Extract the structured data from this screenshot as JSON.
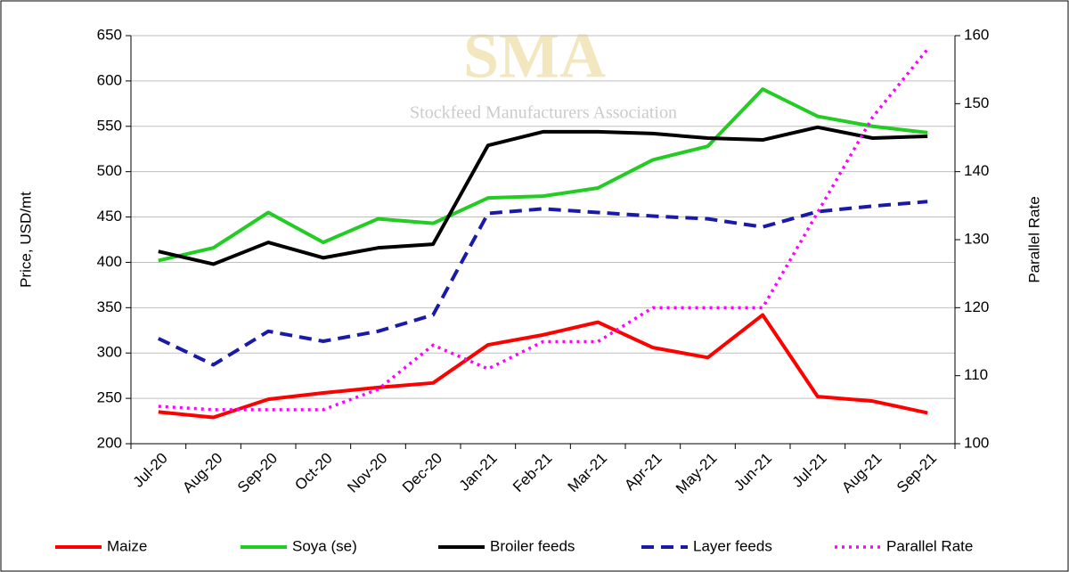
{
  "chart_data": {
    "type": "line",
    "annotations": [
      "SMA",
      "Stockfeed Manufacturers Association"
    ],
    "ylabel": "Price, USD/mt",
    "y2label": "Parallel Rate",
    "categories": [
      "Jul-20",
      "Aug-20",
      "Sep-20",
      "Oct-20",
      "Nov-20",
      "Dec-20",
      "Jan-21",
      "Feb-21",
      "Mar-21",
      "Apr-21",
      "May-21",
      "Jun-21",
      "Jul-21",
      "Aug-21",
      "Sep-21"
    ],
    "series": [
      {
        "name": "Maize",
        "color": "#ff0000",
        "dash": "solid",
        "values": [
          235,
          229,
          249,
          256,
          262,
          267,
          309,
          320,
          334,
          306,
          295,
          342,
          252,
          247,
          234
        ]
      },
      {
        "name": "Soya (se)",
        "color": "#22cc22",
        "dash": "solid",
        "values": [
          402,
          416,
          455,
          422,
          448,
          443,
          471,
          473,
          482,
          513,
          528,
          591,
          561,
          550,
          543
        ]
      },
      {
        "name": "Broiler feeds",
        "color": "#000000",
        "dash": "solid",
        "values": [
          412,
          398,
          422,
          405,
          416,
          420,
          529,
          544,
          544,
          542,
          537,
          535,
          549,
          537,
          539
        ]
      },
      {
        "name": "Layer feeds",
        "color": "#1a1aa8",
        "dash": "dashed",
        "values": [
          316,
          287,
          324,
          313,
          324,
          342,
          454,
          459,
          455,
          451,
          448,
          439,
          456,
          462,
          467
        ]
      },
      {
        "name": "Parallel Rate",
        "color": "#ff00ff",
        "dash": "dotted",
        "axis": "y2",
        "values": [
          105.5,
          105,
          105,
          105,
          108,
          114.5,
          111,
          115,
          115,
          120,
          120,
          120,
          134,
          148,
          158
        ]
      }
    ],
    "ylim": [
      200,
      650
    ],
    "yticks": [
      200,
      250,
      300,
      350,
      400,
      450,
      500,
      550,
      600,
      650
    ],
    "y2lim": [
      100,
      160
    ],
    "y2ticks": [
      100,
      110,
      120,
      130,
      140,
      150,
      160
    ],
    "grid": true,
    "legend": "bottom"
  }
}
